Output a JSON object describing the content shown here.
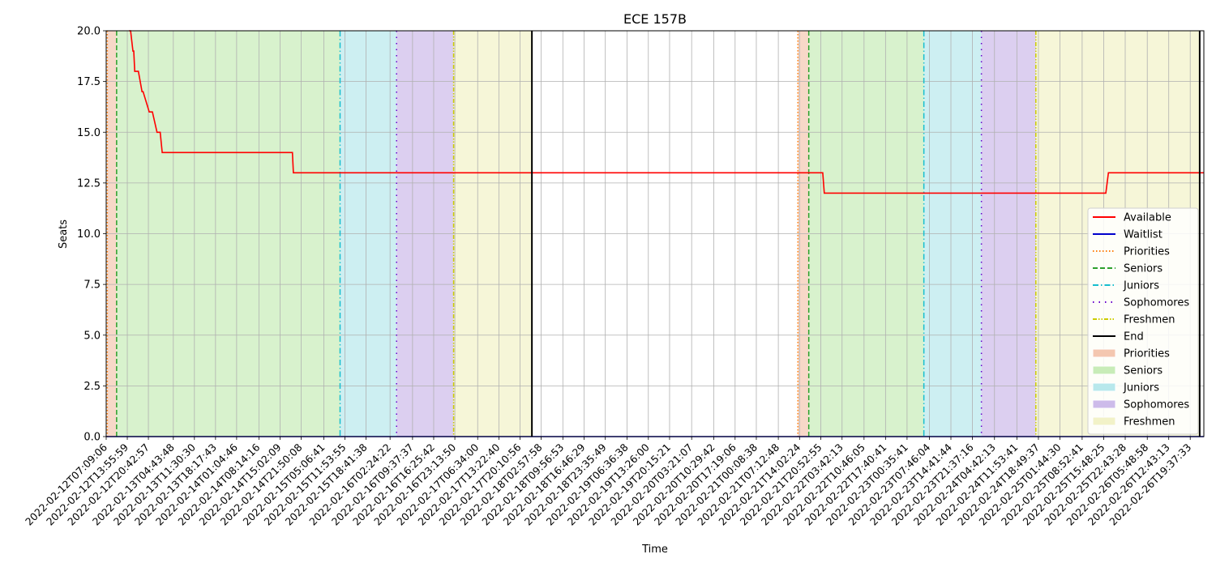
{
  "chart_data": {
    "type": "line",
    "title": "ECE 157B",
    "xlabel": "Time",
    "ylabel": "Seats",
    "ylim": [
      0,
      20
    ],
    "yticks": [
      0.0,
      2.5,
      5.0,
      7.5,
      10.0,
      12.5,
      15.0,
      17.5,
      20.0
    ],
    "ytick_labels": [
      "0.0",
      "2.5",
      "5.0",
      "7.5",
      "10.0",
      "12.5",
      "15.0",
      "17.5",
      "20.0"
    ],
    "xlim": [
      "2022-02-12T07:09:06",
      "2022-02-27T00:00:00"
    ],
    "xtick_labels": [
      "2022-02-12T07:09:06",
      "2022-02-12T13:55:59",
      "2022-02-12T20:42:57",
      "2022-02-13T04:43:48",
      "2022-02-13T11:30:30",
      "2022-02-13T18:17:43",
      "2022-02-14T01:04:46",
      "2022-02-14T08:14:16",
      "2022-02-14T15:02:09",
      "2022-02-14T21:50:08",
      "2022-02-15T05:06:41",
      "2022-02-15T11:53:55",
      "2022-02-15T18:41:38",
      "2022-02-16T02:24:22",
      "2022-02-16T09:37:37",
      "2022-02-16T16:25:42",
      "2022-02-16T23:13:50",
      "2022-02-17T06:34:00",
      "2022-02-17T13:22:40",
      "2022-02-17T20:10:56",
      "2022-02-18T02:57:58",
      "2022-02-18T09:56:53",
      "2022-02-18T16:46:29",
      "2022-02-18T23:35:49",
      "2022-02-19T06:36:38",
      "2022-02-19T13:26:00",
      "2022-02-19T20:15:21",
      "2022-02-20T03:21:07",
      "2022-02-20T10:29:42",
      "2022-02-20T17:19:06",
      "2022-02-21T00:08:38",
      "2022-02-21T07:12:48",
      "2022-02-21T14:02:24",
      "2022-02-21T20:52:55",
      "2022-02-22T03:42:13",
      "2022-02-22T10:46:05",
      "2022-02-22T17:40:41",
      "2022-02-23T00:35:41",
      "2022-02-23T07:46:04",
      "2022-02-23T14:41:44",
      "2022-02-23T21:37:16",
      "2022-02-24T04:42:13",
      "2022-02-24T11:53:41",
      "2022-02-24T18:49:37",
      "2022-02-25T01:44:30",
      "2022-02-25T08:52:41",
      "2022-02-25T15:48:25",
      "2022-02-25T22:43:28",
      "2022-02-26T05:48:58",
      "2022-02-26T12:43:13",
      "2022-02-26T19:37:33"
    ],
    "grid": true,
    "legend_position": "right",
    "series": [
      {
        "name": "Available",
        "color": "#ff0000",
        "style": "solid",
        "x": [
          "2022-02-12T14:30:00",
          "2022-02-12T15:00:00",
          "2022-02-12T15:45:00",
          "2022-02-12T16:00:00",
          "2022-02-12T16:20:00",
          "2022-02-12T17:30:00",
          "2022-02-12T18:40:00",
          "2022-02-12T19:00:00",
          "2022-02-12T21:00:00",
          "2022-02-12T22:00:00",
          "2022-02-12T23:30:00",
          "2022-02-13T00:30:00",
          "2022-02-13T01:10:00",
          "2022-02-14T19:00:00",
          "2022-02-14T19:20:00",
          "2022-02-21T21:30:00",
          "2022-02-21T22:00:00",
          "2022-02-25T16:30:00",
          "2022-02-25T17:20:00",
          "2022-02-27T00:00:00"
        ],
        "y": [
          20,
          20,
          19,
          19,
          18,
          18,
          17,
          17,
          16,
          16,
          15,
          15,
          14,
          14,
          13,
          13,
          12,
          12,
          13,
          13
        ]
      },
      {
        "name": "Waitlist",
        "color": "#0000cc",
        "style": "solid",
        "x": [
          "2022-02-12T07:09:06",
          "2022-02-27T00:00:00"
        ],
        "y": [
          0,
          0
        ]
      }
    ],
    "phases": [
      {
        "name": "Priorities",
        "line_color": "#ff7f0e",
        "fill": "#f4c7b0",
        "style": "dotted",
        "x": [
          "2022-02-12T07:30:00",
          "2022-02-12T10:30:00"
        ]
      },
      {
        "name": "Seniors",
        "line_color": "#2ca02c",
        "fill": "#c8ecb8",
        "style": "dashed",
        "x": [
          "2022-02-12T10:30:00",
          "2022-02-15T10:20:00"
        ]
      },
      {
        "name": "Juniors",
        "line_color": "#17becf",
        "fill": "#b8e8ec",
        "style": "dashdot",
        "x": [
          "2022-02-15T10:20:00",
          "2022-02-16T04:30:00"
        ]
      },
      {
        "name": "Sophomores",
        "line_color": "#6600cc",
        "fill": "#cdbbea",
        "style": "loosedot",
        "x": [
          "2022-02-16T04:30:00",
          "2022-02-16T22:50:00"
        ]
      },
      {
        "name": "Freshmen",
        "line_color": "#cccc00",
        "fill": "#f2f2c8",
        "style": "dashdotdot",
        "x": [
          "2022-02-16T22:50:00",
          "2022-02-18T00:00:00"
        ]
      },
      {
        "name": "Priorities",
        "line_color": "#ff7f0e",
        "fill": "#f4c7b0",
        "style": "dotted",
        "x": [
          "2022-02-21T13:30:00",
          "2022-02-21T17:00:00"
        ]
      },
      {
        "name": "Seniors",
        "line_color": "#2ca02c",
        "fill": "#c8ecb8",
        "style": "dashed",
        "x": [
          "2022-02-21T17:00:00",
          "2022-02-23T06:00:00"
        ]
      },
      {
        "name": "Juniors",
        "line_color": "#17becf",
        "fill": "#b8e8ec",
        "style": "dashdot",
        "x": [
          "2022-02-23T06:00:00",
          "2022-02-24T00:30:00"
        ]
      },
      {
        "name": "Sophomores",
        "line_color": "#6600cc",
        "fill": "#cdbbea",
        "style": "loosedot",
        "x": [
          "2022-02-24T00:30:00",
          "2022-02-24T18:00:00"
        ]
      },
      {
        "name": "Freshmen",
        "line_color": "#cccc00",
        "fill": "#f2f2c8",
        "style": "dashdotdot",
        "x": [
          "2022-02-24T18:00:00",
          "2022-02-26T22:40:00"
        ]
      }
    ],
    "end_lines": [
      "2022-02-18T00:00:00",
      "2022-02-26T22:40:00"
    ],
    "legend": [
      {
        "label": "Available",
        "kind": "line",
        "color": "#ff0000",
        "style": "solid"
      },
      {
        "label": "Waitlist",
        "kind": "line",
        "color": "#0000cc",
        "style": "solid"
      },
      {
        "label": "Priorities",
        "kind": "line",
        "color": "#ff7f0e",
        "style": "dotted"
      },
      {
        "label": "Seniors",
        "kind": "line",
        "color": "#2ca02c",
        "style": "dashed"
      },
      {
        "label": "Juniors",
        "kind": "line",
        "color": "#17becf",
        "style": "dashdot"
      },
      {
        "label": "Sophomores",
        "kind": "line",
        "color": "#6600cc",
        "style": "loosedot"
      },
      {
        "label": "Freshmen",
        "kind": "line",
        "color": "#cccc00",
        "style": "dashdotdot"
      },
      {
        "label": "End",
        "kind": "line",
        "color": "#000000",
        "style": "solid"
      },
      {
        "label": "Priorities",
        "kind": "patch",
        "color": "#f4c7b0"
      },
      {
        "label": "Seniors",
        "kind": "patch",
        "color": "#c8ecb8"
      },
      {
        "label": "Juniors",
        "kind": "patch",
        "color": "#b8e8ec"
      },
      {
        "label": "Sophomores",
        "kind": "patch",
        "color": "#cdbbea"
      },
      {
        "label": "Freshmen",
        "kind": "patch",
        "color": "#f2f2c8"
      }
    ]
  }
}
